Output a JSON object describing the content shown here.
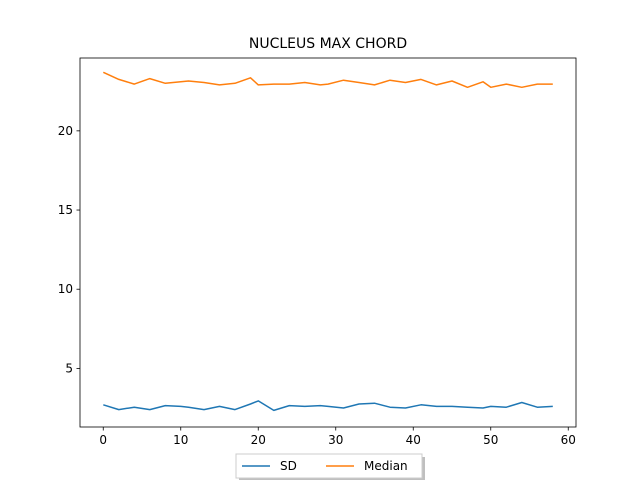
{
  "chart_data": {
    "type": "line",
    "title": "NUCLEUS MAX CHORD",
    "xlabel": "",
    "ylabel": "",
    "xlim": [
      -3,
      61
    ],
    "ylim": [
      1.3,
      24.6
    ],
    "x_ticks": [
      0,
      10,
      20,
      30,
      40,
      50,
      60
    ],
    "y_ticks": [
      5,
      10,
      15,
      20
    ],
    "grid": false,
    "legend_position": "bottom-center",
    "x": [
      0,
      2,
      4,
      6,
      8,
      10,
      11,
      13,
      15,
      17,
      19,
      20,
      22,
      24,
      26,
      28,
      29,
      31,
      33,
      35,
      37,
      39,
      41,
      43,
      45,
      47,
      49,
      50,
      52,
      54,
      56,
      58
    ],
    "series": [
      {
        "name": "SD",
        "color": "#1f77b4",
        "values": [
          2.7,
          2.4,
          2.55,
          2.4,
          2.65,
          2.6,
          2.55,
          2.4,
          2.6,
          2.4,
          2.75,
          2.95,
          2.35,
          2.65,
          2.6,
          2.65,
          2.6,
          2.5,
          2.75,
          2.8,
          2.55,
          2.5,
          2.7,
          2.6,
          2.6,
          2.55,
          2.5,
          2.6,
          2.55,
          2.85,
          2.55,
          2.6
        ]
      },
      {
        "name": "Median",
        "color": "#ff7f0e",
        "values": [
          23.7,
          23.25,
          22.95,
          23.3,
          23.0,
          23.1,
          23.15,
          23.05,
          22.9,
          23.0,
          23.35,
          22.9,
          22.95,
          22.95,
          23.05,
          22.9,
          22.95,
          23.2,
          23.05,
          22.9,
          23.2,
          23.05,
          23.25,
          22.9,
          23.15,
          22.75,
          23.1,
          22.75,
          22.95,
          22.75,
          22.95,
          22.95
        ]
      }
    ]
  }
}
